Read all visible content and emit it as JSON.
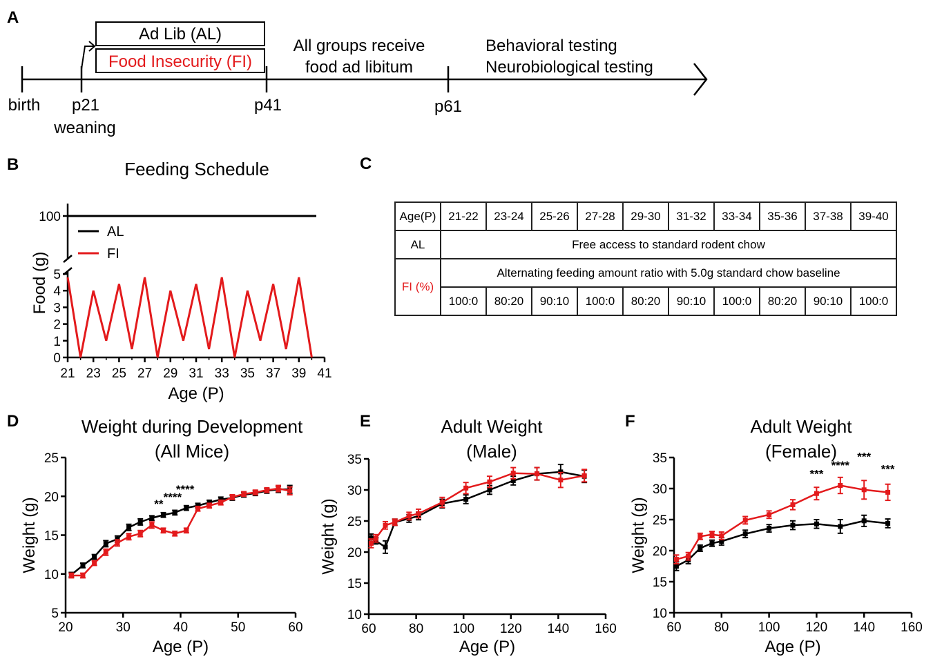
{
  "colors": {
    "al": "#000000",
    "fi": "#e31a1c"
  },
  "panel_a": {
    "letter": "A",
    "al_box": "Ad Lib (AL)",
    "fi_box": "Food Insecurity (FI)",
    "note_1": "All groups receive",
    "note_2": "food ad libitum",
    "testing_1": "Behavioral testing",
    "testing_2": "Neurobiological testing",
    "t_birth": "birth",
    "t_p21": "p21",
    "t_weaning": "weaning",
    "t_p41": "p41",
    "t_p61": "p61"
  },
  "panel_c": {
    "letter": "C",
    "age_header": "Age(P)",
    "ages": [
      "21-22",
      "23-24",
      "25-26",
      "27-28",
      "29-30",
      "31-32",
      "33-34",
      "35-36",
      "37-38",
      "39-40"
    ],
    "al_label": "AL",
    "al_text": "Free access to standard rodent chow",
    "fi_label": "FI (%)",
    "fi_text": "Alternating feeding amount ratio with 5.0g standard chow baseline",
    "fi_ratios": [
      "100:0",
      "80:20",
      "90:10",
      "100:0",
      "80:20",
      "90:10",
      "100:0",
      "80:20",
      "90:10",
      "100:0"
    ]
  },
  "chart_data": [
    {
      "panel": "B",
      "type": "line",
      "title": "Feeding Schedule",
      "xlabel": "Age (P)",
      "ylabel": "Food (g)",
      "xlim": [
        21,
        41
      ],
      "xticks": [
        "21",
        "23",
        "25",
        "27",
        "29",
        "31",
        "33",
        "35",
        "37",
        "39",
        "41"
      ],
      "yticks_lower": [
        "0",
        "1",
        "2",
        "3",
        "4",
        "5"
      ],
      "ytick_upper": "100",
      "axis_break": true,
      "legend": {
        "position": "top-left",
        "entries": [
          "AL",
          "FI"
        ]
      },
      "series": [
        {
          "name": "AL",
          "x": [
            21,
            40
          ],
          "y": [
            100,
            100
          ]
        },
        {
          "name": "FI",
          "x": [
            21,
            22,
            23,
            24,
            25,
            26,
            27,
            28,
            29,
            30,
            31,
            32,
            33,
            34,
            35,
            36,
            37,
            38,
            39,
            40
          ],
          "y": [
            4.8,
            0,
            4.0,
            1.0,
            4.4,
            0.5,
            4.8,
            0,
            4.0,
            1.0,
            4.4,
            0.5,
            4.8,
            0,
            4.0,
            1.0,
            4.4,
            0.5,
            4.8,
            0
          ]
        }
      ]
    },
    {
      "panel": "D",
      "type": "line",
      "title": "Weight during Development",
      "subtitle": "(All Mice)",
      "xlabel": "Age (P)",
      "ylabel": "Weight (g)",
      "xlim": [
        20,
        60
      ],
      "ylim": [
        5,
        25
      ],
      "xticks": [
        "20",
        "30",
        "40",
        "50",
        "60"
      ],
      "yticks": [
        "5",
        "10",
        "15",
        "20",
        "25"
      ],
      "series": [
        {
          "name": "AL",
          "x": [
            21,
            23,
            25,
            27,
            29,
            31,
            33,
            35,
            37,
            39,
            41,
            43,
            45,
            47,
            49,
            51,
            53,
            55,
            57,
            59
          ],
          "y": [
            9.9,
            11.1,
            12.2,
            13.9,
            14.5,
            16.0,
            16.7,
            17.2,
            17.6,
            17.9,
            18.5,
            18.8,
            19.2,
            19.6,
            19.8,
            20.2,
            20.4,
            20.7,
            20.9,
            20.9
          ],
          "err": [
            0.3,
            0.3,
            0.3,
            0.4,
            0.4,
            0.4,
            0.4,
            0.3,
            0.3,
            0.3,
            0.3,
            0.3,
            0.3,
            0.3,
            0.3,
            0.3,
            0.3,
            0.3,
            0.4,
            0.5
          ]
        },
        {
          "name": "FI",
          "x": [
            21,
            23,
            25,
            27,
            29,
            31,
            33,
            35,
            37,
            39,
            41,
            43,
            45,
            47,
            49,
            51,
            53,
            55,
            57,
            59
          ],
          "y": [
            9.8,
            9.8,
            11.4,
            12.8,
            14.0,
            14.8,
            15.2,
            16.3,
            15.6,
            15.2,
            15.6,
            18.4,
            18.8,
            19.2,
            19.9,
            20.3,
            20.5,
            20.8,
            21.0,
            20.7
          ],
          "err": [
            0.3,
            0.3,
            0.3,
            0.4,
            0.4,
            0.4,
            0.4,
            0.4,
            0.3,
            0.3,
            0.3,
            0.3,
            0.3,
            0.3,
            0.3,
            0.3,
            0.3,
            0.3,
            0.4,
            0.5
          ]
        }
      ],
      "annotations": [
        {
          "x": 36.2,
          "y": 18.5,
          "text": "**"
        },
        {
          "x": 38.6,
          "y": 19.4,
          "text": "****"
        },
        {
          "x": 40.8,
          "y": 20.4,
          "text": "****"
        }
      ]
    },
    {
      "panel": "E",
      "type": "line",
      "title": "Adult Weight",
      "subtitle": "(Male)",
      "xlabel": "Age (P)",
      "ylabel": "Weight (g)",
      "xlim": [
        60,
        160
      ],
      "ylim": [
        10,
        35
      ],
      "xticks": [
        "60",
        "80",
        "100",
        "120",
        "140",
        "160"
      ],
      "yticks": [
        "10",
        "15",
        "20",
        "25",
        "30",
        "35"
      ],
      "series": [
        {
          "name": "AL",
          "x": [
            61,
            63,
            67,
            71,
            77,
            81,
            91,
            101,
            111,
            121,
            131,
            141,
            151
          ],
          "y": [
            22.3,
            21.8,
            20.8,
            24.8,
            25.4,
            25.8,
            27.8,
            28.5,
            30.0,
            31.5,
            32.6,
            32.9,
            32.2
          ],
          "err": [
            0.6,
            0.5,
            1.0,
            0.5,
            0.6,
            0.6,
            0.7,
            0.7,
            0.7,
            0.7,
            1.0,
            1.2,
            1.0
          ]
        },
        {
          "name": "FI",
          "x": [
            61,
            63,
            67,
            71,
            77,
            81,
            91,
            101,
            111,
            121,
            131,
            141,
            151
          ],
          "y": [
            21.4,
            22.2,
            24.3,
            24.8,
            25.8,
            26.2,
            28.0,
            30.3,
            31.3,
            32.7,
            32.6,
            31.6,
            32.3
          ],
          "err": [
            0.7,
            0.6,
            0.6,
            0.5,
            0.6,
            0.7,
            0.8,
            0.9,
            0.9,
            0.9,
            1.0,
            1.2,
            1.0
          ]
        }
      ]
    },
    {
      "panel": "F",
      "type": "line",
      "title": "Adult Weight",
      "subtitle": "(Female)",
      "xlabel": "Age (P)",
      "ylabel": "Weight (g)",
      "xlim": [
        60,
        160
      ],
      "ylim": [
        10,
        35
      ],
      "xticks": [
        "60",
        "80",
        "100",
        "120",
        "140",
        "160"
      ],
      "yticks": [
        "10",
        "15",
        "20",
        "25",
        "30",
        "35"
      ],
      "series": [
        {
          "name": "AL",
          "x": [
            61,
            66,
            71,
            76,
            80,
            90,
            100,
            110,
            120,
            130,
            140,
            150
          ],
          "y": [
            17.5,
            18.5,
            20.4,
            21.2,
            21.5,
            22.7,
            23.6,
            24.1,
            24.3,
            23.9,
            24.8,
            24.4
          ],
          "err": [
            0.7,
            0.6,
            0.5,
            0.5,
            0.6,
            0.6,
            0.6,
            0.7,
            0.7,
            1.1,
            0.9,
            0.7
          ]
        },
        {
          "name": "FI",
          "x": [
            61,
            66,
            71,
            76,
            80,
            90,
            100,
            110,
            120,
            130,
            140,
            150
          ],
          "y": [
            18.6,
            19.1,
            22.3,
            22.6,
            22.4,
            24.9,
            25.8,
            27.4,
            29.2,
            30.5,
            29.8,
            29.4
          ],
          "err": [
            0.7,
            0.6,
            0.5,
            0.5,
            0.6,
            0.6,
            0.6,
            0.8,
            1.0,
            1.3,
            1.5,
            1.3
          ]
        }
      ],
      "annotations": [
        {
          "x": 120,
          "y": 31.7,
          "text": "***"
        },
        {
          "x": 130,
          "y": 33.1,
          "text": "****"
        },
        {
          "x": 140,
          "y": 34.5,
          "text": "***"
        },
        {
          "x": 150,
          "y": 32.5,
          "text": "***"
        }
      ]
    }
  ]
}
